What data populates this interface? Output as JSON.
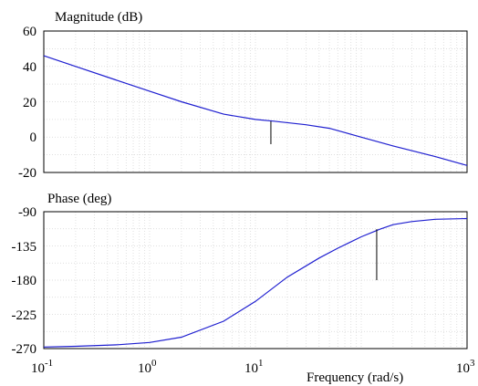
{
  "chart_data": [
    {
      "type": "line",
      "title": "Magnitude (dB)",
      "xscale": "log",
      "xlim": [
        0.1,
        1000
      ],
      "ylim": [
        -20,
        60
      ],
      "yticks": [
        "60",
        "40",
        "20",
        "0",
        "-20"
      ],
      "grid": true,
      "series": [
        {
          "x": [
            0.1,
            0.2,
            0.5,
            1,
            2,
            5,
            10,
            15,
            30,
            50,
            100,
            200,
            500,
            1000
          ],
          "y": [
            46,
            40,
            32,
            26,
            20,
            13,
            10,
            9,
            7,
            5,
            0,
            -5,
            -11,
            -16
          ]
        }
      ],
      "markers": [
        {
          "x": 14,
          "y_from": 9,
          "y_to": -4
        }
      ]
    },
    {
      "type": "line",
      "title": "Phase (deg)",
      "xscale": "log",
      "xlim": [
        0.1,
        1000
      ],
      "ylim": [
        -270,
        -90
      ],
      "yticks": [
        "-90",
        "-135",
        "-180",
        "-225",
        "-270"
      ],
      "xlabel": "Frequency (rad/s)",
      "xticks": [
        {
          "base": "10",
          "exp": "-1"
        },
        {
          "base": "10",
          "exp": "0"
        },
        {
          "base": "10",
          "exp": "1"
        },
        {
          "base": "10",
          "exp": "3"
        }
      ],
      "grid": true,
      "series": [
        {
          "x": [
            0.1,
            0.2,
            0.5,
            1,
            2,
            5,
            10,
            20,
            40,
            60,
            100,
            150,
            200,
            300,
            500,
            1000
          ],
          "y": [
            -268,
            -267,
            -265,
            -262,
            -255,
            -234,
            -208,
            -176,
            -151,
            -138,
            -123,
            -113,
            -107,
            -103,
            -100,
            -99
          ]
        }
      ],
      "markers": [
        {
          "x": 140,
          "y_from": -113,
          "y_to": -180
        }
      ]
    }
  ]
}
